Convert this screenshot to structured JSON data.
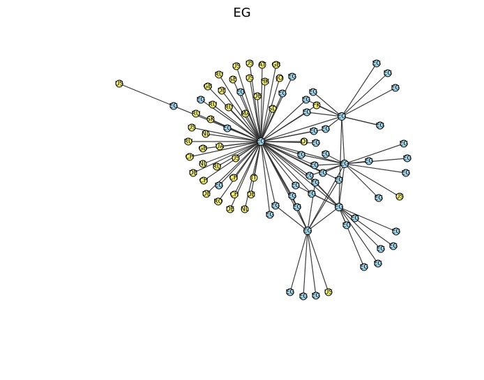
{
  "title": "EG",
  "colors": {
    "blue": "#a6d8ec",
    "yellow": "#f2f07a",
    "edge": "#333333"
  },
  "nodes": [
    {
      "id": "c0",
      "label": "EG",
      "group": "blue"
    },
    {
      "id": "c1",
      "label": "EG",
      "group": "blue"
    },
    {
      "id": "c2",
      "label": "EG",
      "group": "blue"
    },
    {
      "id": "c3",
      "label": "EG",
      "group": "blue"
    },
    {
      "id": "c4",
      "label": "EG",
      "group": "blue"
    },
    {
      "id": "y1",
      "label": "US",
      "group": "yellow"
    },
    {
      "id": "b1",
      "label": "EG",
      "group": "blue"
    },
    {
      "id": "y2",
      "label": "US",
      "group": "yellow"
    },
    {
      "id": "y3",
      "label": "US",
      "group": "yellow"
    },
    {
      "id": "y4",
      "label": "AT",
      "group": "yellow"
    },
    {
      "id": "y5",
      "label": "GB",
      "group": "yellow"
    },
    {
      "id": "y6",
      "label": "RU",
      "group": "yellow"
    },
    {
      "id": "y7",
      "label": "SE",
      "group": "yellow"
    },
    {
      "id": "y8",
      "label": "US",
      "group": "yellow"
    },
    {
      "id": "y9",
      "label": "HK",
      "group": "yellow"
    },
    {
      "id": "y10",
      "label": "JO",
      "group": "yellow"
    },
    {
      "id": "b2",
      "label": "EG",
      "group": "blue"
    },
    {
      "id": "y11",
      "label": "GB",
      "group": "yellow"
    },
    {
      "id": "y12",
      "label": "DE",
      "group": "yellow"
    },
    {
      "id": "b3",
      "label": "EG",
      "group": "blue"
    },
    {
      "id": "y13",
      "label": "DE",
      "group": "yellow"
    },
    {
      "id": "b4",
      "label": "EG",
      "group": "blue"
    },
    {
      "id": "b5",
      "label": "EG",
      "group": "blue"
    },
    {
      "id": "y14",
      "label": "RU",
      "group": "yellow"
    },
    {
      "id": "y15",
      "label": "RU",
      "group": "yellow"
    },
    {
      "id": "y16",
      "label": "MA",
      "group": "yellow"
    },
    {
      "id": "y17",
      "label": "SD",
      "group": "yellow"
    },
    {
      "id": "y18",
      "label": "RU",
      "group": "yellow"
    },
    {
      "id": "y19",
      "label": "SK",
      "group": "yellow"
    },
    {
      "id": "y20",
      "label": "US",
      "group": "yellow"
    },
    {
      "id": "b6",
      "label": "EG",
      "group": "blue"
    },
    {
      "id": "y21",
      "label": "NL",
      "group": "yellow"
    },
    {
      "id": "y22",
      "label": "RU",
      "group": "yellow"
    },
    {
      "id": "y23",
      "label": "GB",
      "group": "yellow"
    },
    {
      "id": "y24",
      "label": "UA",
      "group": "yellow"
    },
    {
      "id": "y25",
      "label": "CH",
      "group": "yellow"
    },
    {
      "id": "y26",
      "label": "NL",
      "group": "yellow"
    },
    {
      "id": "y27",
      "label": "RU",
      "group": "yellow"
    },
    {
      "id": "y28",
      "label": "US",
      "group": "yellow"
    },
    {
      "id": "y29",
      "label": "DE",
      "group": "yellow"
    },
    {
      "id": "y30",
      "label": "CH",
      "group": "yellow"
    },
    {
      "id": "y31",
      "label": "CH",
      "group": "yellow"
    },
    {
      "id": "y32",
      "label": "IT",
      "group": "yellow"
    },
    {
      "id": "b7",
      "label": "EG",
      "group": "blue"
    },
    {
      "id": "y33",
      "label": "DE",
      "group": "yellow"
    },
    {
      "id": "y34",
      "label": "CH",
      "group": "yellow"
    },
    {
      "id": "y35",
      "label": "DE",
      "group": "yellow"
    },
    {
      "id": "y36",
      "label": "RO",
      "group": "yellow"
    },
    {
      "id": "y37",
      "label": "DE",
      "group": "yellow"
    },
    {
      "id": "y38",
      "label": "NL",
      "group": "yellow"
    },
    {
      "id": "b8",
      "label": "EG",
      "group": "blue"
    },
    {
      "id": "b9",
      "label": "EG",
      "group": "blue"
    },
    {
      "id": "b10",
      "label": "EG",
      "group": "blue"
    },
    {
      "id": "b11",
      "label": "EG",
      "group": "blue"
    },
    {
      "id": "b12",
      "label": "EG",
      "group": "blue"
    },
    {
      "id": "y39",
      "label": "FK",
      "group": "yellow"
    },
    {
      "id": "b13",
      "label": "EG",
      "group": "blue"
    },
    {
      "id": "b14",
      "label": "EG",
      "group": "blue"
    },
    {
      "id": "b15",
      "label": "EG",
      "group": "blue"
    },
    {
      "id": "b16",
      "label": "EG",
      "group": "blue"
    },
    {
      "id": "b17",
      "label": "EG",
      "group": "blue"
    },
    {
      "id": "b18",
      "label": "EG",
      "group": "blue"
    },
    {
      "id": "y40",
      "label": "DJ",
      "group": "yellow"
    },
    {
      "id": "b19",
      "label": "EG",
      "group": "blue"
    },
    {
      "id": "b20",
      "label": "EG",
      "group": "blue"
    },
    {
      "id": "b21",
      "label": "EG",
      "group": "blue"
    },
    {
      "id": "b22",
      "label": "EG",
      "group": "blue"
    },
    {
      "id": "b23",
      "label": "EG",
      "group": "blue"
    },
    {
      "id": "b24",
      "label": "EG",
      "group": "blue"
    },
    {
      "id": "b25",
      "label": "EG",
      "group": "blue"
    },
    {
      "id": "b26",
      "label": "EG",
      "group": "blue"
    },
    {
      "id": "b27",
      "label": "EG",
      "group": "blue"
    },
    {
      "id": "b28",
      "label": "EG",
      "group": "blue"
    },
    {
      "id": "b29",
      "label": "EG",
      "group": "blue"
    },
    {
      "id": "b30",
      "label": "EG",
      "group": "blue"
    },
    {
      "id": "b31",
      "label": "EG",
      "group": "blue"
    },
    {
      "id": "b32",
      "label": "EG",
      "group": "blue"
    },
    {
      "id": "b33",
      "label": "EG",
      "group": "blue"
    },
    {
      "id": "b34",
      "label": "EG",
      "group": "blue"
    },
    {
      "id": "b35",
      "label": "EG",
      "group": "blue"
    },
    {
      "id": "b36",
      "label": "EG",
      "group": "blue"
    },
    {
      "id": "b37",
      "label": "EG",
      "group": "blue"
    },
    {
      "id": "y41",
      "label": "US",
      "group": "yellow"
    },
    {
      "id": "b38",
      "label": "EG",
      "group": "blue"
    },
    {
      "id": "b39",
      "label": "EG",
      "group": "blue"
    },
    {
      "id": "b40",
      "label": "EG",
      "group": "blue"
    },
    {
      "id": "b41",
      "label": "EG",
      "group": "blue"
    },
    {
      "id": "b42",
      "label": "EG",
      "group": "blue"
    },
    {
      "id": "b43",
      "label": "EG",
      "group": "blue"
    },
    {
      "id": "b44",
      "label": "EG",
      "group": "blue"
    },
    {
      "id": "b45",
      "label": "EG",
      "group": "blue"
    },
    {
      "id": "b46",
      "label": "EG",
      "group": "blue"
    },
    {
      "id": "b47",
      "label": "EG",
      "group": "blue"
    },
    {
      "id": "y42",
      "label": "US",
      "group": "yellow"
    }
  ],
  "edges": [
    [
      "y1",
      "b1"
    ],
    [
      "b1",
      "c0"
    ],
    [
      "c0",
      "y2"
    ],
    [
      "c0",
      "y3"
    ],
    [
      "c0",
      "y4"
    ],
    [
      "c0",
      "y5"
    ],
    [
      "c0",
      "y6"
    ],
    [
      "c0",
      "y7"
    ],
    [
      "c0",
      "y8"
    ],
    [
      "c0",
      "y9"
    ],
    [
      "c0",
      "y10"
    ],
    [
      "c0",
      "b2"
    ],
    [
      "c0",
      "y11"
    ],
    [
      "c0",
      "y12"
    ],
    [
      "c0",
      "b3"
    ],
    [
      "c0",
      "y13"
    ],
    [
      "c0",
      "b4"
    ],
    [
      "c0",
      "b5"
    ],
    [
      "c0",
      "y14"
    ],
    [
      "c0",
      "y15"
    ],
    [
      "c0",
      "y16"
    ],
    [
      "c0",
      "y17"
    ],
    [
      "c0",
      "y18"
    ],
    [
      "c0",
      "y19"
    ],
    [
      "c0",
      "y20"
    ],
    [
      "c0",
      "b6"
    ],
    [
      "c0",
      "y21"
    ],
    [
      "c0",
      "y22"
    ],
    [
      "c0",
      "y23"
    ],
    [
      "c0",
      "y24"
    ],
    [
      "c0",
      "y25"
    ],
    [
      "c0",
      "y26"
    ],
    [
      "c0",
      "y27"
    ],
    [
      "c0",
      "y28"
    ],
    [
      "c0",
      "y29"
    ],
    [
      "c0",
      "y30"
    ],
    [
      "c0",
      "y31"
    ],
    [
      "c0",
      "y32"
    ],
    [
      "c0",
      "b7"
    ],
    [
      "c0",
      "y33"
    ],
    [
      "c0",
      "y34"
    ],
    [
      "c0",
      "y35"
    ],
    [
      "c0",
      "y36"
    ],
    [
      "c0",
      "y37"
    ],
    [
      "c0",
      "y38"
    ],
    [
      "c0",
      "b8"
    ],
    [
      "c0",
      "b9"
    ],
    [
      "c0",
      "b10"
    ],
    [
      "c0",
      "b11"
    ],
    [
      "c0",
      "y39"
    ],
    [
      "c0",
      "b13"
    ],
    [
      "c0",
      "b14"
    ],
    [
      "c0",
      "b15"
    ],
    [
      "c0",
      "b16"
    ],
    [
      "c0",
      "y40"
    ],
    [
      "c0",
      "b19"
    ],
    [
      "c0",
      "b20"
    ],
    [
      "c0",
      "b21"
    ],
    [
      "c0",
      "b22"
    ],
    [
      "c0",
      "b23"
    ],
    [
      "c0",
      "b24"
    ],
    [
      "c0",
      "b25"
    ],
    [
      "c0",
      "b26"
    ],
    [
      "c0",
      "b27"
    ],
    [
      "c0",
      "b28"
    ],
    [
      "c0",
      "c1"
    ],
    [
      "c0",
      "c2"
    ],
    [
      "c0",
      "c3"
    ],
    [
      "c0",
      "c4"
    ],
    [
      "c1",
      "b29"
    ],
    [
      "c1",
      "b30"
    ],
    [
      "c1",
      "b31"
    ],
    [
      "c1",
      "b32"
    ],
    [
      "c1",
      "b11"
    ],
    [
      "c1",
      "b12"
    ],
    [
      "c1",
      "y39"
    ],
    [
      "c1",
      "b13"
    ],
    [
      "c1",
      "b14"
    ],
    [
      "c1",
      "b17"
    ],
    [
      "c1",
      "c2"
    ],
    [
      "c1",
      "c3"
    ],
    [
      "c2",
      "b33"
    ],
    [
      "c2",
      "b34"
    ],
    [
      "c2",
      "b35"
    ],
    [
      "c2",
      "b36"
    ],
    [
      "c2",
      "b37"
    ],
    [
      "c2",
      "y41"
    ],
    [
      "c2",
      "b18"
    ],
    [
      "c2",
      "b19"
    ],
    [
      "c2",
      "b20"
    ],
    [
      "c2",
      "b21"
    ],
    [
      "c2",
      "b22"
    ],
    [
      "c2",
      "c3"
    ],
    [
      "c2",
      "c4"
    ],
    [
      "c3",
      "b38"
    ],
    [
      "c3",
      "b39"
    ],
    [
      "c3",
      "b40"
    ],
    [
      "c3",
      "b41"
    ],
    [
      "c3",
      "b42"
    ],
    [
      "c3",
      "b43"
    ],
    [
      "c3",
      "b44"
    ],
    [
      "c3",
      "b22"
    ],
    [
      "c3",
      "b23"
    ],
    [
      "c3",
      "b24"
    ],
    [
      "c3",
      "b25"
    ],
    [
      "c3",
      "c4"
    ],
    [
      "c4",
      "b45"
    ],
    [
      "c4",
      "b46"
    ],
    [
      "c4",
      "b47"
    ],
    [
      "c4",
      "y42"
    ],
    [
      "c4",
      "b26"
    ],
    [
      "c4",
      "b27"
    ],
    [
      "c4",
      "b28"
    ],
    [
      "c4",
      "b9"
    ],
    [
      "c4",
      "b10"
    ],
    [
      "c4",
      "b23"
    ]
  ]
}
